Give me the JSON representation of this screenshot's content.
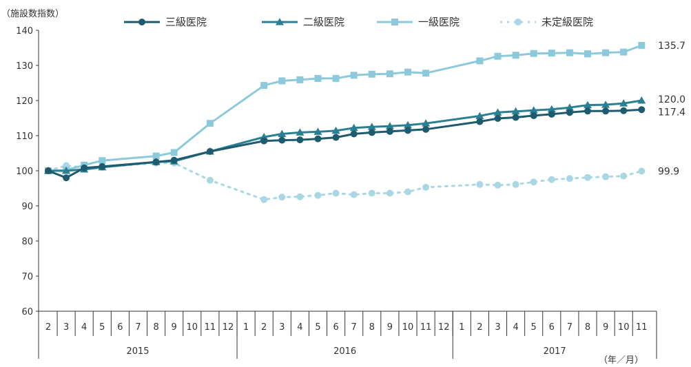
{
  "chart_data": {
    "type": "line",
    "ylabel": "（施設数指数）",
    "xunit": "（年／月）",
    "ylim": [
      60,
      140
    ],
    "yticks": [
      60,
      70,
      80,
      90,
      100,
      110,
      120,
      130,
      140
    ],
    "grid": false,
    "legend_position": "top",
    "month_labels": [
      "2",
      "3",
      "4",
      "5",
      "6",
      "7",
      "8",
      "9",
      "10",
      "11",
      "12",
      "1",
      "2",
      "3",
      "4",
      "5",
      "6",
      "7",
      "8",
      "9",
      "10",
      "11",
      "12",
      "1",
      "2",
      "3",
      "4",
      "5",
      "6",
      "7",
      "8",
      "9",
      "10",
      "11"
    ],
    "years": [
      {
        "label": "2015",
        "start": 0,
        "end": 10
      },
      {
        "label": "2016",
        "start": 11,
        "end": 22
      },
      {
        "label": "2017",
        "start": 23,
        "end": 33
      }
    ],
    "series": [
      {
        "name": "三級医院",
        "color": "#1e5b6e",
        "marker": "circle",
        "dash": "",
        "end_label": "117.4",
        "points": [
          [
            0,
            100
          ],
          [
            1,
            98
          ],
          [
            2,
            100.8
          ],
          [
            3,
            101.2
          ],
          [
            6,
            102.5
          ],
          [
            7,
            103
          ],
          [
            9,
            105.5
          ],
          [
            12,
            108.5
          ],
          [
            13,
            108.7
          ],
          [
            14,
            108.8
          ],
          [
            15,
            109.1
          ],
          [
            16,
            109.5
          ],
          [
            17,
            110.5
          ],
          [
            18,
            110.9
          ],
          [
            19,
            111.2
          ],
          [
            20,
            111.5
          ],
          [
            21,
            111.8
          ],
          [
            24,
            114
          ],
          [
            25,
            114.9
          ],
          [
            26,
            115.2
          ],
          [
            27,
            115.7
          ],
          [
            28,
            116.1
          ],
          [
            29,
            116.6
          ],
          [
            30,
            117
          ],
          [
            31,
            117
          ],
          [
            32,
            117.1
          ],
          [
            33,
            117.4
          ]
        ]
      },
      {
        "name": "二級医院",
        "color": "#2a7f92",
        "marker": "triangle",
        "dash": "",
        "end_label": "120.0",
        "points": [
          [
            0,
            100
          ],
          [
            1,
            100
          ],
          [
            2,
            100.4
          ],
          [
            3,
            101
          ],
          [
            6,
            102.5
          ],
          [
            7,
            102.7
          ],
          [
            9,
            105.5
          ],
          [
            12,
            109.6
          ],
          [
            13,
            110.5
          ],
          [
            14,
            110.9
          ],
          [
            15,
            111.1
          ],
          [
            16,
            111.4
          ],
          [
            17,
            112.2
          ],
          [
            18,
            112.5
          ],
          [
            19,
            112.7
          ],
          [
            20,
            113
          ],
          [
            21,
            113.5
          ],
          [
            24,
            115.6
          ],
          [
            25,
            116.6
          ],
          [
            26,
            116.9
          ],
          [
            27,
            117.2
          ],
          [
            28,
            117.5
          ],
          [
            29,
            118
          ],
          [
            30,
            118.7
          ],
          [
            31,
            118.8
          ],
          [
            32,
            119.2
          ],
          [
            33,
            120
          ]
        ]
      },
      {
        "name": "一級医院",
        "color": "#8ccadb",
        "marker": "square",
        "dash": "",
        "end_label": "135.7",
        "points": [
          [
            0,
            100
          ],
          [
            1,
            100.2
          ],
          [
            2,
            101.6
          ],
          [
            3,
            102.9
          ],
          [
            6,
            104.2
          ],
          [
            7,
            105.2
          ],
          [
            9,
            113.5
          ],
          [
            12,
            124.3
          ],
          [
            13,
            125.6
          ],
          [
            14,
            125.9
          ],
          [
            15,
            126.3
          ],
          [
            16,
            126.3
          ],
          [
            17,
            127.2
          ],
          [
            18,
            127.5
          ],
          [
            19,
            127.6
          ],
          [
            20,
            128.1
          ],
          [
            21,
            127.8
          ],
          [
            24,
            131.3
          ],
          [
            25,
            132.6
          ],
          [
            26,
            132.9
          ],
          [
            27,
            133.4
          ],
          [
            28,
            133.5
          ],
          [
            29,
            133.6
          ],
          [
            30,
            133.3
          ],
          [
            31,
            133.6
          ],
          [
            32,
            133.8
          ],
          [
            33,
            135.7
          ]
        ]
      },
      {
        "name": "未定級医院",
        "color": "#a9d8e4",
        "marker": "circle",
        "dash": "3,7",
        "end_label": "99.9",
        "points": [
          [
            0,
            100
          ],
          [
            1,
            101.5
          ],
          [
            2,
            100.9
          ],
          [
            3,
            101
          ],
          [
            6,
            102.2
          ],
          [
            7,
            102.2
          ],
          [
            9,
            97.3
          ],
          [
            12,
            91.8
          ],
          [
            13,
            92.5
          ],
          [
            14,
            92.6
          ],
          [
            15,
            93
          ],
          [
            16,
            93.6
          ],
          [
            17,
            93.2
          ],
          [
            18,
            93.6
          ],
          [
            19,
            93.6
          ],
          [
            20,
            94
          ],
          [
            21,
            95.3
          ],
          [
            24,
            96.1
          ],
          [
            25,
            95.9
          ],
          [
            26,
            96.1
          ],
          [
            27,
            96.8
          ],
          [
            28,
            97.5
          ],
          [
            29,
            97.8
          ],
          [
            30,
            98.1
          ],
          [
            31,
            98.3
          ],
          [
            32,
            98.5
          ],
          [
            33,
            99.9
          ]
        ]
      }
    ]
  }
}
